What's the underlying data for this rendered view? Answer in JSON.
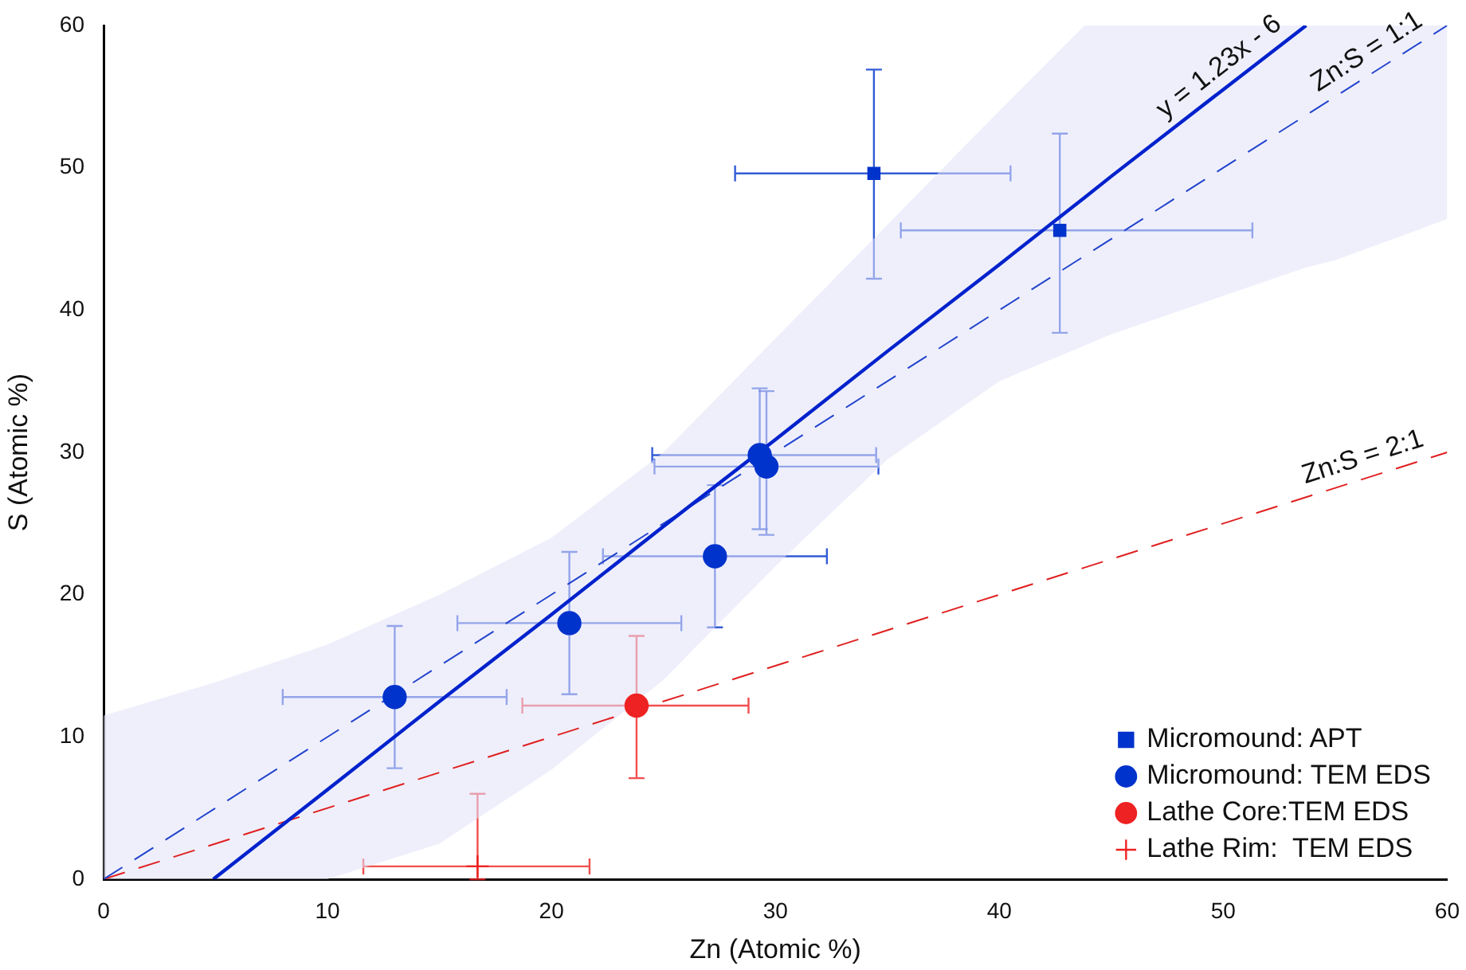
{
  "chart_data": {
    "type": "scatter",
    "xlabel": "Zn (Atomic %)",
    "ylabel": "S (Atomic %)",
    "xlim": [
      0,
      60
    ],
    "xticks": [
      0,
      10,
      20,
      30,
      40,
      50,
      60
    ],
    "ylim": [
      0,
      60
    ],
    "yticks": [
      0,
      10,
      20,
      30,
      40,
      50,
      60
    ],
    "grid": false,
    "legend": "bottom right",
    "series": [
      {
        "type": "line",
        "name": "y = 1.23x - 6",
        "color": "#0022cc",
        "line_style": "solid",
        "marker": "none",
        "x": [
          0,
          4.9,
          10,
          15,
          20,
          25,
          30,
          35,
          40,
          43.8,
          45,
          50,
          53.7,
          55,
          60
        ],
        "values": [
          null,
          0,
          6.3,
          12.5,
          18.6,
          24.8,
          30.9,
          37.1,
          43.2,
          47.9,
          49.4,
          55.5,
          60,
          null,
          null
        ],
        "lower": [
          0,
          0,
          0,
          2.5,
          7.7,
          14,
          22,
          29.5,
          35,
          37.5,
          38.3,
          41,
          43,
          43.5,
          46.4
        ],
        "upper": [
          11.5,
          13.8,
          16.5,
          20,
          24,
          30,
          38,
          46,
          54,
          60,
          60,
          60,
          60,
          60,
          60
        ]
      },
      {
        "type": "line",
        "name": "Zn:S = 1:1",
        "color": "#2244cc",
        "line_style": "dashed",
        "marker": "none",
        "x": [
          0,
          60
        ],
        "values": [
          0,
          60
        ]
      },
      {
        "type": "line",
        "name": "Zn:S = 2:1",
        "color": "#e02020",
        "line_style": "dashed",
        "marker": "none",
        "x": [
          0,
          60
        ],
        "values": [
          0,
          30
        ]
      },
      {
        "name": "Micromound: APT",
        "color": "#0033cc",
        "marker": "square",
        "x": [
          34.4,
          42.7
        ],
        "values": [
          49.6,
          45.6
        ],
        "xerrors": [
          [
            28.2,
            40.5
          ],
          [
            35.6,
            51.3
          ]
        ],
        "errors": [
          [
            42.2,
            56.9
          ],
          [
            38.4,
            52.4
          ]
        ]
      },
      {
        "name": "Micromound: TEM EDS",
        "color": "#0033cc",
        "marker": "circle",
        "x": [
          13.0,
          20.8,
          27.3,
          29.3,
          29.6
        ],
        "values": [
          12.8,
          18.0,
          22.7,
          29.8,
          29.0
        ],
        "xerrors": [
          [
            8.0,
            18.0
          ],
          [
            15.8,
            25.8
          ],
          [
            22.3,
            32.3
          ],
          [
            24.5,
            34.5
          ],
          [
            24.6,
            34.6
          ]
        ],
        "errors": [
          [
            7.8,
            17.8
          ],
          [
            13.0,
            23.0
          ],
          [
            17.7,
            27.7
          ],
          [
            24.6,
            34.5
          ],
          [
            24.2,
            34.3
          ]
        ]
      },
      {
        "name": "Lathe Core:TEM EDS",
        "color": "#ee2222",
        "marker": "circle",
        "x": [
          23.8
        ],
        "values": [
          12.2
        ],
        "xerrors": [
          [
            18.7,
            28.8
          ]
        ],
        "errors": [
          [
            7.1,
            17.1
          ]
        ]
      },
      {
        "name": "Lathe Rim:  TEM EDS",
        "color": "#ee2222",
        "marker": "cross",
        "x": [
          16.7
        ],
        "values": [
          0.9
        ],
        "xerrors": [
          [
            11.6,
            21.7
          ]
        ],
        "errors": [
          [
            0,
            6.0
          ]
        ]
      }
    ]
  }
}
